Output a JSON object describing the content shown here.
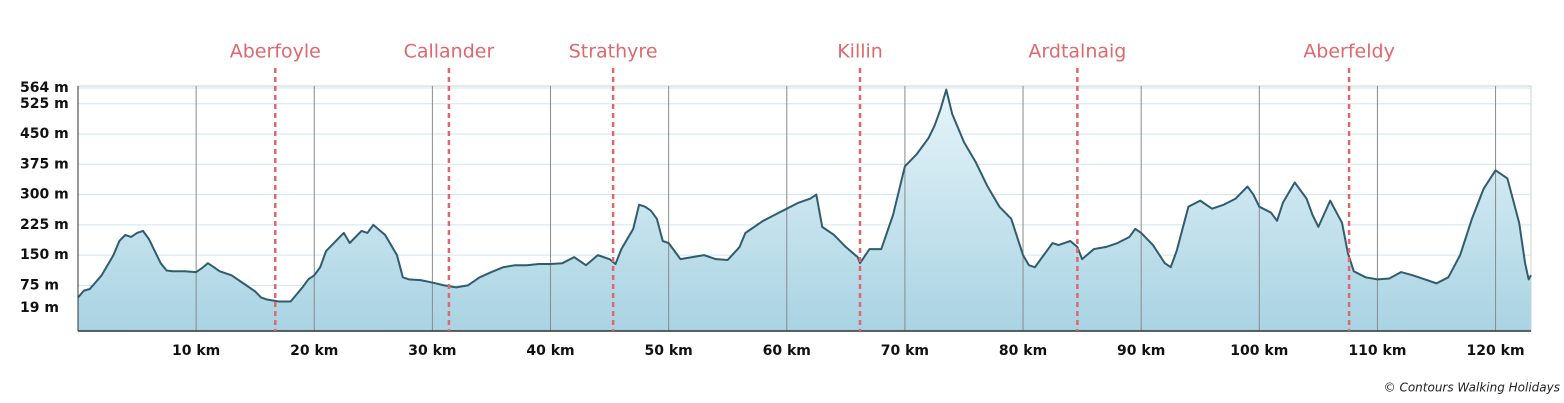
{
  "chart_data": {
    "type": "area",
    "line_color": "#2f5d6e",
    "fill_top_color": "#e6f4f9",
    "fill_bottom_color": "#a9d3e3",
    "annotation_color": "#e0676d",
    "x": [
      0,
      0.5,
      1,
      2,
      3,
      3.5,
      4,
      4.5,
      5,
      5.5,
      6,
      6.5,
      7,
      7.5,
      8,
      9,
      10,
      10.5,
      11,
      11.5,
      12,
      13,
      14,
      15,
      15.5,
      16,
      17,
      18,
      19,
      19.5,
      20,
      20.5,
      21,
      22,
      22.5,
      23,
      24,
      24.5,
      25,
      26,
      27,
      27.5,
      28,
      29,
      30,
      31,
      32,
      33,
      34,
      35,
      36,
      37,
      38,
      39,
      40,
      41,
      42,
      43,
      44,
      45,
      45.5,
      46,
      47,
      47.5,
      48,
      48.5,
      49,
      49.5,
      50,
      51,
      52,
      53,
      54,
      55,
      56,
      56.5,
      57,
      58,
      59,
      60,
      61,
      62,
      62.5,
      63,
      64,
      65,
      66,
      66.2,
      67,
      68,
      69,
      70,
      71,
      71.5,
      72,
      72.5,
      73,
      73.5,
      74,
      75,
      76,
      77,
      78,
      79,
      80,
      80.5,
      81,
      82,
      82.5,
      83,
      84,
      84.6,
      85,
      86,
      87,
      88,
      89,
      89.5,
      90,
      91,
      92,
      92.5,
      93,
      94,
      95,
      96,
      97,
      98,
      99,
      99.5,
      100,
      101,
      101.5,
      102,
      103,
      104,
      104.5,
      105,
      106,
      107,
      107.5,
      108,
      109,
      110,
      111,
      112,
      113,
      114,
      115,
      116,
      117,
      118,
      119,
      120,
      121,
      122,
      122.5,
      122.8,
      123
    ],
    "values": [
      45,
      62,
      66,
      100,
      150,
      185,
      200,
      195,
      205,
      210,
      190,
      160,
      130,
      112,
      110,
      110,
      108,
      118,
      130,
      120,
      110,
      100,
      80,
      60,
      45,
      40,
      35,
      35,
      70,
      90,
      100,
      120,
      160,
      190,
      205,
      180,
      210,
      205,
      225,
      200,
      150,
      95,
      90,
      88,
      82,
      75,
      70,
      75,
      95,
      108,
      120,
      125,
      125,
      128,
      128,
      130,
      145,
      125,
      150,
      140,
      128,
      165,
      215,
      275,
      270,
      260,
      240,
      185,
      180,
      140,
      145,
      150,
      140,
      138,
      170,
      205,
      215,
      235,
      250,
      265,
      280,
      290,
      300,
      220,
      200,
      170,
      145,
      130,
      165,
      165,
      250,
      370,
      400,
      420,
      440,
      470,
      510,
      560,
      500,
      430,
      380,
      320,
      270,
      240,
      150,
      125,
      120,
      160,
      180,
      175,
      185,
      170,
      140,
      165,
      170,
      180,
      195,
      215,
      205,
      175,
      130,
      120,
      160,
      270,
      285,
      265,
      275,
      290,
      320,
      300,
      270,
      255,
      235,
      280,
      330,
      290,
      250,
      220,
      285,
      230,
      155,
      110,
      95,
      90,
      92,
      108,
      100,
      90,
      80,
      95,
      150,
      240,
      315,
      360,
      340,
      230,
      130,
      90,
      100
    ],
    "xlim": [
      0,
      123
    ],
    "ylim": [
      -38,
      569
    ],
    "xticks": [
      {
        "value": 10,
        "label": "10 km"
      },
      {
        "value": 20,
        "label": "20 km"
      },
      {
        "value": 30,
        "label": "30 km"
      },
      {
        "value": 40,
        "label": "40 km"
      },
      {
        "value": 50,
        "label": "50 km"
      },
      {
        "value": 60,
        "label": "60 km"
      },
      {
        "value": 70,
        "label": "70 km"
      },
      {
        "value": 80,
        "label": "80 km"
      },
      {
        "value": 90,
        "label": "90 km"
      },
      {
        "value": 100,
        "label": "100 km"
      },
      {
        "value": 110,
        "label": "110 km"
      },
      {
        "value": 120,
        "label": "120 km"
      }
    ],
    "yticks": [
      {
        "value": 19,
        "label": "19 m"
      },
      {
        "value": 75,
        "label": "75 m"
      },
      {
        "value": 150,
        "label": "150 m"
      },
      {
        "value": 225,
        "label": "225 m"
      },
      {
        "value": 300,
        "label": "300 m"
      },
      {
        "value": 375,
        "label": "375 m"
      },
      {
        "value": 450,
        "label": "450 m"
      },
      {
        "value": 525,
        "label": "525 m"
      },
      {
        "value": 564,
        "label": "564 m"
      }
    ],
    "annotations": [
      {
        "label": "Aberfoyle",
        "x": 16.7
      },
      {
        "label": "Callander",
        "x": 31.4
      },
      {
        "label": "Strathyre",
        "x": 45.3
      },
      {
        "label": "Killin",
        "x": 66.2
      },
      {
        "label": "Ardtalnaig",
        "x": 84.6
      },
      {
        "label": "Aberfeldy",
        "x": 107.6
      }
    ],
    "credit": "© Contours Walking Holidays",
    "grid": true
  }
}
